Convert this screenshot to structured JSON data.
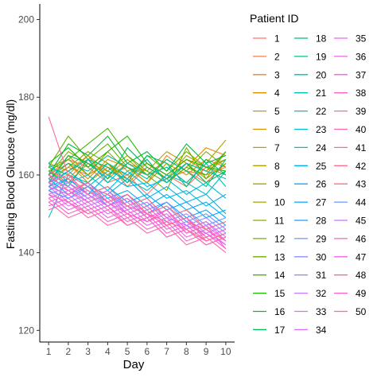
{
  "chart_data": {
    "type": "line",
    "title": "",
    "xlabel": "Day",
    "ylabel": "Fasting Blood Glucose (mg/dl)",
    "x": [
      1,
      2,
      3,
      4,
      5,
      6,
      7,
      8,
      9,
      10
    ],
    "x_tick_labels": [
      "1",
      "2",
      "3",
      "4",
      "5",
      "6",
      "7",
      "8",
      "9",
      "10"
    ],
    "xlim": [
      0.55,
      10.45
    ],
    "ylim": [
      117,
      204
    ],
    "y_ticks": [
      120,
      140,
      160,
      180,
      200
    ],
    "y_tick_labels": [
      "120",
      "140",
      "160",
      "180",
      "200"
    ],
    "grid": false,
    "legend": {
      "title": "Patient ID",
      "placement": "right",
      "columns": 3
    },
    "series": [
      {
        "name": "1",
        "color": "#F8766D",
        "values": [
          160,
          164,
          162,
          158,
          160,
          155,
          160,
          157,
          162,
          160
        ]
      },
      {
        "name": "2",
        "color": "#F27D52",
        "values": [
          158,
          162,
          160,
          163,
          157,
          162,
          159,
          161,
          158,
          163
        ]
      },
      {
        "name": "3",
        "color": "#EA8331",
        "values": [
          161,
          159,
          164,
          160,
          162,
          158,
          165,
          161,
          160,
          162
        ]
      },
      {
        "name": "4",
        "color": "#E28A00",
        "values": [
          159,
          163,
          158,
          162,
          160,
          164,
          158,
          162,
          167,
          165
        ]
      },
      {
        "name": "5",
        "color": "#D89000",
        "values": [
          162,
          160,
          165,
          161,
          159,
          163,
          160,
          164,
          161,
          166
        ]
      },
      {
        "name": "6",
        "color": "#CE9500",
        "values": [
          160,
          163,
          159,
          164,
          162,
          158,
          163,
          160,
          164,
          162
        ]
      },
      {
        "name": "7",
        "color": "#C49A00",
        "values": [
          163,
          161,
          165,
          159,
          163,
          161,
          166,
          163,
          161,
          164
        ]
      },
      {
        "name": "8",
        "color": "#B79F00",
        "values": [
          158,
          165,
          160,
          163,
          158,
          162,
          159,
          165,
          162,
          160
        ]
      },
      {
        "name": "9",
        "color": "#ABA300",
        "values": [
          161,
          158,
          163,
          160,
          164,
          160,
          162,
          158,
          163,
          169
        ]
      },
      {
        "name": "10",
        "color": "#9DA700",
        "values": [
          162,
          164,
          160,
          166,
          161,
          163,
          159,
          163,
          159,
          166
        ]
      },
      {
        "name": "11",
        "color": "#8EAB00",
        "values": [
          160,
          166,
          163,
          161,
          165,
          160,
          164,
          161,
          166,
          162
        ]
      },
      {
        "name": "12",
        "color": "#7CAE00",
        "values": [
          159,
          162,
          166,
          163,
          159,
          165,
          161,
          166,
          162,
          164
        ]
      },
      {
        "name": "13",
        "color": "#68B100",
        "values": [
          162,
          170,
          164,
          168,
          162,
          160,
          156,
          167,
          159,
          163
        ]
      },
      {
        "name": "14",
        "color": "#4DB400",
        "values": [
          161,
          164,
          168,
          172,
          165,
          161,
          158,
          162,
          160,
          166
        ]
      },
      {
        "name": "15",
        "color": "#1DB700",
        "values": [
          163,
          167,
          162,
          166,
          170,
          163,
          160,
          164,
          162,
          161
        ]
      },
      {
        "name": "16",
        "color": "#00BA38",
        "values": [
          160,
          168,
          165,
          170,
          163,
          166,
          161,
          168,
          163,
          165
        ]
      },
      {
        "name": "17",
        "color": "#00BC59",
        "values": [
          158,
          165,
          163,
          159,
          167,
          162,
          159,
          163,
          158,
          161
        ]
      },
      {
        "name": "18",
        "color": "#00BD73",
        "values": [
          161,
          157,
          164,
          162,
          158,
          165,
          163,
          157,
          164,
          160
        ]
      },
      {
        "name": "19",
        "color": "#00BF8A",
        "values": [
          159,
          163,
          161,
          165,
          162,
          159,
          164,
          161,
          157,
          164
        ]
      },
      {
        "name": "20",
        "color": "#00C09E",
        "values": [
          162,
          160,
          158,
          163,
          160,
          164,
          158,
          163,
          161,
          159
        ]
      },
      {
        "name": "21",
        "color": "#00C1B1",
        "values": [
          157,
          161,
          164,
          158,
          163,
          160,
          162,
          158,
          163,
          157
        ]
      },
      {
        "name": "22",
        "color": "#00C0C3",
        "values": [
          149,
          160,
          157,
          161,
          159,
          156,
          160,
          158,
          155,
          161
        ]
      },
      {
        "name": "23",
        "color": "#00BDD3",
        "values": [
          163,
          158,
          160,
          156,
          161,
          157,
          159,
          155,
          158,
          154
        ]
      },
      {
        "name": "24",
        "color": "#00B9E1",
        "values": [
          156,
          159,
          155,
          160,
          157,
          158,
          154,
          156,
          152,
          155
        ]
      },
      {
        "name": "25",
        "color": "#00B4EF",
        "values": [
          158,
          161,
          157,
          155,
          159,
          154,
          157,
          153,
          155,
          150
        ]
      },
      {
        "name": "26",
        "color": "#00AEFA",
        "values": [
          160,
          156,
          158,
          154,
          156,
          152,
          155,
          151,
          153,
          149
        ]
      },
      {
        "name": "27",
        "color": "#00A7FF",
        "values": [
          157,
          159,
          155,
          157,
          153,
          155,
          151,
          153,
          149,
          151
        ]
      },
      {
        "name": "28",
        "color": "#1A9FFF",
        "values": [
          159,
          155,
          157,
          153,
          155,
          150,
          153,
          149,
          151,
          147
        ]
      },
      {
        "name": "29",
        "color": "#6B96FF",
        "values": [
          156,
          158,
          154,
          156,
          152,
          154,
          149,
          151,
          147,
          149
        ]
      },
      {
        "name": "30",
        "color": "#8F8CFF",
        "values": [
          158,
          154,
          156,
          152,
          154,
          150,
          152,
          147,
          149,
          145
        ]
      },
      {
        "name": "31",
        "color": "#AA82FF",
        "values": [
          155,
          157,
          153,
          155,
          151,
          153,
          148,
          150,
          146,
          148
        ]
      },
      {
        "name": "32",
        "color": "#BF7AFF",
        "values": [
          157,
          153,
          155,
          151,
          153,
          149,
          151,
          146,
          148,
          144
        ]
      },
      {
        "name": "33",
        "color": "#CF72FF",
        "values": [
          154,
          156,
          152,
          154,
          150,
          152,
          147,
          149,
          145,
          147
        ]
      },
      {
        "name": "34",
        "color": "#DC6BFA",
        "values": [
          156,
          152,
          154,
          150,
          152,
          148,
          150,
          145,
          147,
          143
        ]
      },
      {
        "name": "35",
        "color": "#E765F1",
        "values": [
          153,
          155,
          151,
          153,
          149,
          151,
          146,
          148,
          144,
          146
        ]
      },
      {
        "name": "36",
        "color": "#F062E6",
        "values": [
          155,
          151,
          153,
          149,
          151,
          147,
          149,
          144,
          146,
          142
        ]
      },
      {
        "name": "37",
        "color": "#F760D9",
        "values": [
          152,
          154,
          150,
          152,
          148,
          150,
          145,
          147,
          143,
          145
        ]
      },
      {
        "name": "38",
        "color": "#FB61CB",
        "values": [
          154,
          150,
          152,
          148,
          150,
          146,
          148,
          143,
          145,
          141
        ]
      },
      {
        "name": "39",
        "color": "#FE62BD",
        "values": [
          151,
          153,
          149,
          151,
          147,
          149,
          144,
          146,
          142,
          144
        ]
      },
      {
        "name": "40",
        "color": "#FF65AD",
        "values": [
          153,
          149,
          151,
          147,
          149,
          145,
          147,
          142,
          144,
          140
        ]
      },
      {
        "name": "41",
        "color": "#FF699C",
        "values": [
          175,
          160,
          157,
          155,
          152,
          150,
          148,
          146,
          143,
          145
        ]
      },
      {
        "name": "42",
        "color": "#FD6E8B",
        "values": [
          160,
          156,
          158,
          153,
          155,
          150,
          152,
          148,
          146,
          143
        ]
      },
      {
        "name": "43",
        "color": "#FA727A",
        "values": [
          158,
          160,
          155,
          157,
          152,
          154,
          149,
          151,
          146,
          148
        ]
      },
      {
        "name": "44",
        "color": "#6B96FF",
        "values": [
          156,
          154,
          157,
          152,
          155,
          151,
          153,
          148,
          150,
          146
        ]
      },
      {
        "name": "45",
        "color": "#CF72FF",
        "values": [
          159,
          157,
          154,
          156,
          151,
          153,
          149,
          147,
          145,
          142
        ]
      },
      {
        "name": "46",
        "color": "#FE62BD",
        "values": [
          157,
          155,
          158,
          153,
          150,
          152,
          147,
          149,
          144,
          146
        ]
      },
      {
        "name": "47",
        "color": "#F062E6",
        "values": [
          160,
          158,
          155,
          152,
          154,
          149,
          151,
          146,
          148,
          143
        ]
      },
      {
        "name": "48",
        "color": "#FF65AD",
        "values": [
          155,
          153,
          150,
          152,
          147,
          149,
          144,
          146,
          142,
          144
        ]
      },
      {
        "name": "49",
        "color": "#FB61CB",
        "values": [
          158,
          156,
          153,
          155,
          150,
          148,
          151,
          145,
          147,
          141
        ]
      },
      {
        "name": "50",
        "color": "#FF699C",
        "values": [
          161,
          159,
          156,
          153,
          155,
          150,
          147,
          149,
          143,
          145
        ]
      }
    ]
  }
}
